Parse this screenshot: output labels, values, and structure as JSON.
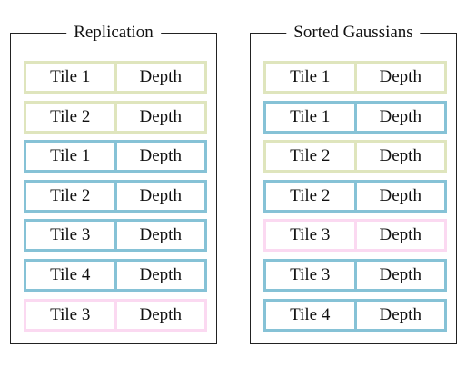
{
  "colors": {
    "olive": "#dfe5bd",
    "blue": "#86c2d6",
    "pink": "#fbd9f1"
  },
  "replication": {
    "title": "Replication",
    "rows": [
      {
        "tile": "Tile 1",
        "depth": "Depth",
        "color": "olive"
      },
      {
        "tile": "Tile 2",
        "depth": "Depth",
        "color": "olive"
      },
      {
        "tile": "Tile 1",
        "depth": "Depth",
        "color": "blue"
      },
      {
        "tile": "Tile 2",
        "depth": "Depth",
        "color": "blue"
      },
      {
        "tile": "Tile 3",
        "depth": "Depth",
        "color": "blue"
      },
      {
        "tile": "Tile 4",
        "depth": "Depth",
        "color": "blue"
      },
      {
        "tile": "Tile 3",
        "depth": "Depth",
        "color": "pink"
      }
    ]
  },
  "sorted": {
    "title": "Sorted Gaussians",
    "rows": [
      {
        "tile": "Tile 1",
        "depth": "Depth",
        "color": "olive"
      },
      {
        "tile": "Tile 1",
        "depth": "Depth",
        "color": "blue"
      },
      {
        "tile": "Tile 2",
        "depth": "Depth",
        "color": "olive"
      },
      {
        "tile": "Tile 2",
        "depth": "Depth",
        "color": "blue"
      },
      {
        "tile": "Tile 3",
        "depth": "Depth",
        "color": "pink"
      },
      {
        "tile": "Tile 3",
        "depth": "Depth",
        "color": "blue"
      },
      {
        "tile": "Tile 4",
        "depth": "Depth",
        "color": "blue"
      }
    ]
  }
}
